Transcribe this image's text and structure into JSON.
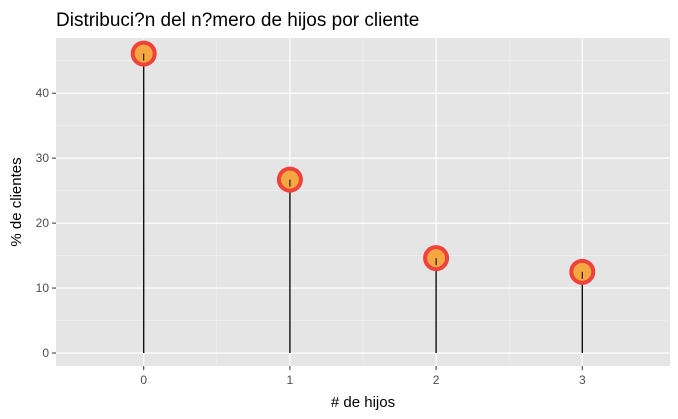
{
  "chart_data": {
    "type": "lollipop",
    "title": "Distribuci?n del n?mero de hijos por cliente",
    "xlabel": "# de hijos",
    "ylabel": "% de clientes",
    "categories": [
      "0",
      "1",
      "2",
      "3"
    ],
    "x": [
      0,
      1,
      2,
      3
    ],
    "values": [
      46.1,
      26.7,
      14.6,
      12.5
    ],
    "xlim": [
      -0.6,
      3.6
    ],
    "ylim": [
      -2.0,
      48.5
    ],
    "y_ticks": [
      0,
      10,
      20,
      30,
      40
    ],
    "x_ticks": [
      0,
      1,
      2,
      3
    ],
    "grid": true,
    "colors": {
      "panel_background": "#e5e5e5",
      "grid_major": "#ffffff",
      "grid_minor": "#f2f2f2",
      "stem": "#000000",
      "point_fill": "#f5a742",
      "point_stroke": "#f0413a",
      "tick_text": "#4d4d4d",
      "tick_mark": "#333333"
    }
  }
}
